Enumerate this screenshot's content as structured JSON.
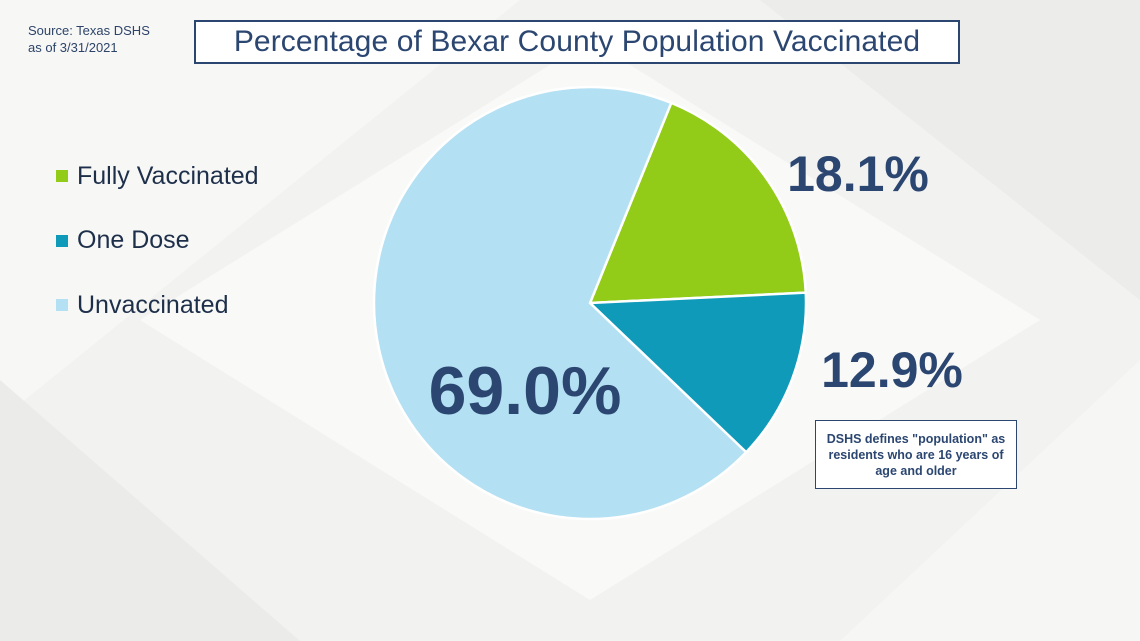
{
  "source": {
    "line1": "Source: Texas DSHS",
    "line2": "as of 3/31/2021"
  },
  "note": "DSHS defines \"population\" as residents who are 16 years of age and older",
  "colors": {
    "title": "#2b4670",
    "fully": "#92cb18",
    "one_dose": "#0f9aba",
    "unvaccinated": "#b3e0f2"
  },
  "chart_data": {
    "type": "pie",
    "title": "Percentage of Bexar County Population Vaccinated",
    "legend_position": "left",
    "slices": [
      {
        "label": "Fully Vaccinated",
        "value": 18.1,
        "display": "18.1%",
        "color": "#92cb18"
      },
      {
        "label": "One Dose",
        "value": 12.9,
        "display": "12.9%",
        "color": "#0f9aba"
      },
      {
        "label": "Unvaccinated",
        "value": 69.0,
        "display": "69.0%",
        "color": "#b3e0f2"
      }
    ]
  }
}
